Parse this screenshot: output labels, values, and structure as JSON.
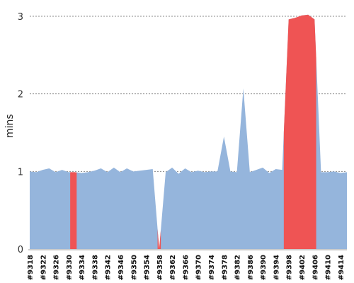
{
  "chart_data": {
    "type": "area",
    "title": "",
    "xlabel": "",
    "ylabel": "mins",
    "ylim": [
      0,
      3.2
    ],
    "y_ticks": [
      0,
      1,
      2,
      3
    ],
    "grid": "horizontal dotted",
    "x": [
      9318,
      9320,
      9322,
      9324,
      9326,
      9328,
      9330,
      9332,
      9334,
      9336,
      9338,
      9340,
      9342,
      9344,
      9346,
      9348,
      9350,
      9352,
      9354,
      9356,
      9358,
      9360,
      9362,
      9364,
      9366,
      9368,
      9370,
      9372,
      9374,
      9376,
      9378,
      9380,
      9382,
      9384,
      9386,
      9388,
      9390,
      9392,
      9394,
      9396,
      9398,
      9400,
      9402,
      9404,
      9406,
      9408,
      9410,
      9412,
      9414,
      9416
    ],
    "x_tick_labels": [
      "#9318",
      "#9322",
      "#9326",
      "#9330",
      "#9334",
      "#9338",
      "#9342",
      "#9346",
      "#9350",
      "#9354",
      "#9358",
      "#9362",
      "#9366",
      "#9370",
      "#9374",
      "#9378",
      "#9382",
      "#9386",
      "#9390",
      "#9394",
      "#9398",
      "#9402",
      "#9406",
      "#9410",
      "#9414"
    ],
    "series": [
      {
        "name": "",
        "values": [
          1.0,
          0.99,
          1.02,
          1.04,
          0.99,
          1.02,
          0.99,
          0.99,
          0.98,
          0.99,
          1.01,
          1.04,
          0.99,
          1.05,
          0.99,
          1.04,
          1.0,
          1.01,
          1.02,
          1.03,
          0.0,
          0.99,
          1.05,
          0.97,
          1.04,
          0.99,
          1.01,
          0.99,
          1.0,
          1.0,
          1.45,
          1.0,
          0.99,
          2.07,
          0.99,
          1.02,
          1.05,
          0.98,
          1.03,
          1.02,
          2.96,
          2.98,
          3.01,
          3.02,
          2.96,
          0.99,
          0.99,
          1.0,
          0.98,
          0.99
        ],
        "status_colors": {
          "normal": "#95b5dc",
          "failed": "#ef5454"
        },
        "failed_builds": [
          9331,
          9332,
          9358,
          9397,
          9398,
          9399,
          9400,
          9401,
          9402,
          9403,
          9404,
          9405,
          9406
        ]
      }
    ]
  }
}
